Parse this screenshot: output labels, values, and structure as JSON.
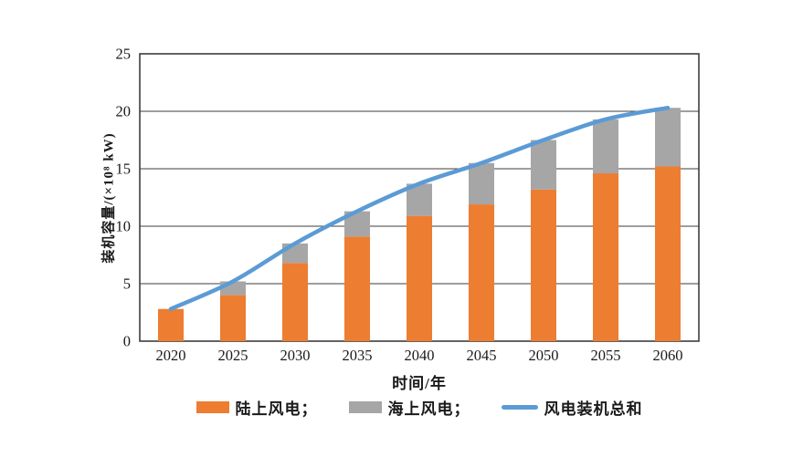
{
  "figure": {
    "background": "#ffffff"
  },
  "chart_data": {
    "type": "bar",
    "subtype": "stacked-bars-with-total-line",
    "title": "",
    "categories": [
      "2020",
      "2025",
      "2030",
      "2035",
      "2040",
      "2045",
      "2050",
      "2055",
      "2060"
    ],
    "series": [
      {
        "name": "陆上风电",
        "type": "bar",
        "color": "#ED7D31",
        "values": [
          2.8,
          4.0,
          6.8,
          9.1,
          10.9,
          11.9,
          13.2,
          14.6,
          15.2
        ]
      },
      {
        "name": "海上风电",
        "type": "bar",
        "color": "#A6A6A6",
        "values": [
          0,
          1.2,
          1.7,
          2.2,
          2.8,
          3.6,
          4.3,
          4.7,
          5.1
        ]
      },
      {
        "name": "风电装机总和",
        "type": "line",
        "color": "#5B9BD5",
        "values": [
          2.8,
          5.2,
          8.5,
          11.3,
          13.7,
          15.5,
          17.5,
          19.3,
          20.3
        ]
      }
    ],
    "xlabel": "时间/年",
    "ylabel": "装机容量/(×10⁸ kW)",
    "ylim": [
      0,
      25
    ],
    "yticks": [
      0,
      5,
      10,
      15,
      20,
      25
    ],
    "grid": "horizontal",
    "axis_color": "#3d3d3d",
    "legend_position": "bottom",
    "legend": [
      {
        "label": "陆上风电；",
        "swatch": "bar",
        "color": "#ED7D31"
      },
      {
        "label": "海上风电；",
        "swatch": "bar",
        "color": "#A6A6A6"
      },
      {
        "label": "风电装机总和",
        "swatch": "line",
        "color": "#5B9BD5"
      }
    ]
  }
}
